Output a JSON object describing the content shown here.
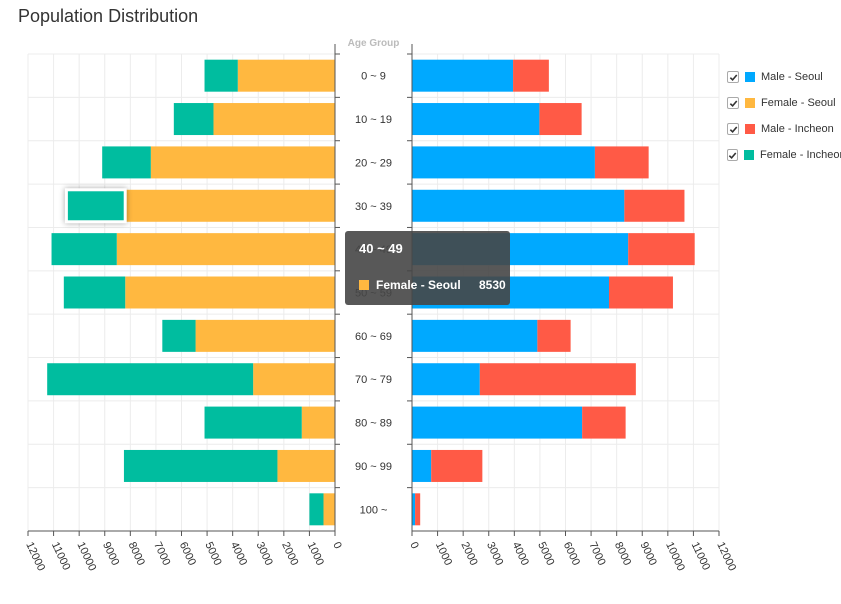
{
  "chart_data": {
    "type": "bar",
    "title": "Population Distribution",
    "ylabel": "Age Group",
    "categories": [
      "0 ~ 9",
      "10 ~ 19",
      "20 ~ 29",
      "30 ~ 39",
      "40 ~ 49",
      "50 ~ 59",
      "60 ~ 69",
      "70 ~ 79",
      "80 ~ 89",
      "90 ~ 99",
      "100 ~"
    ],
    "series": [
      {
        "name": "Male - Seoul",
        "side": "right",
        "color": "#00a9ff",
        "values": [
          3950,
          4980,
          7150,
          8300,
          8450,
          7700,
          4900,
          2650,
          6650,
          750,
          120
        ]
      },
      {
        "name": "Female - Seoul",
        "side": "left",
        "color": "#ffb840",
        "values": [
          3800,
          4750,
          7200,
          8200,
          8530,
          8200,
          5450,
          3200,
          1300,
          2250,
          450
        ]
      },
      {
        "name": "Male - Incheon",
        "side": "right",
        "color": "#ff5a46",
        "values": [
          1400,
          1650,
          2100,
          2350,
          2600,
          2500,
          1300,
          6100,
          1700,
          2000,
          200
        ]
      },
      {
        "name": "Female - Incheon",
        "side": "left",
        "color": "#00bd9f",
        "values": [
          1300,
          1550,
          1900,
          2300,
          2550,
          2400,
          1300,
          8050,
          3800,
          6000,
          550
        ]
      }
    ],
    "left_axis": {
      "range": [
        0,
        12000
      ],
      "ticks": [
        "0",
        "1000",
        "2000",
        "3000",
        "4000",
        "5000",
        "6000",
        "7000",
        "8000",
        "9000",
        "10000",
        "11000",
        "12000"
      ]
    },
    "right_axis": {
      "range": [
        0,
        12000
      ],
      "ticks": [
        "0",
        "1000",
        "2000",
        "3000",
        "4000",
        "5000",
        "6000",
        "7000",
        "8000",
        "9000",
        "10000",
        "11000",
        "12000"
      ]
    },
    "grid": true,
    "legend_position": "right",
    "tooltip": {
      "category": "40 ~ 49",
      "series": "Female - Seoul",
      "value": "8530"
    },
    "highlighted": {
      "series": "Female - Incheon",
      "category": "30 ~ 39"
    }
  },
  "ui": {
    "background": "#ffffff",
    "grid_color": "#ececec",
    "axis_color": "#555555",
    "tooltip_bg": "#464646",
    "checkbox_icon": "checkmark-icon"
  }
}
